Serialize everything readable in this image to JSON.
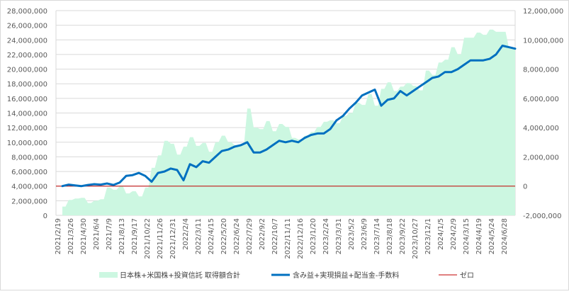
{
  "chart_data": {
    "type": "area",
    "title": "",
    "xlabel": "",
    "ylabel": "",
    "ylim_left": [
      0,
      28000000
    ],
    "ylim_right": [
      -2000000,
      12000000
    ],
    "left_ticks": [
      0,
      2000000,
      4000000,
      6000000,
      8000000,
      10000000,
      12000000,
      14000000,
      16000000,
      18000000,
      20000000,
      22000000,
      24000000,
      26000000,
      28000000
    ],
    "left_tick_labels": [
      "0",
      "2,000,000",
      "4,000,000",
      "6,000,000",
      "8,000,000",
      "10,000,000",
      "12,000,000",
      "14,000,000",
      "16,000,000",
      "18,000,000",
      "20,000,000",
      "22,000,000",
      "24,000,000",
      "26,000,000",
      "28,000,000"
    ],
    "right_ticks": [
      -2000000,
      0,
      2000000,
      4000000,
      6000000,
      8000000,
      10000000,
      12000000
    ],
    "right_tick_labels": [
      "-2,000,000",
      "0",
      "2,000,000",
      "4,000,000",
      "6,000,000",
      "8,000,000",
      "10,000,000",
      "12,000,000"
    ],
    "x_tick_labels": [
      "2021/2/19",
      "2021/3/26",
      "2021/4/30",
      "2021/6/4",
      "2021/7/9",
      "2021/8/13",
      "2021/9/17",
      "2021/10/22",
      "2021/11/26",
      "2021/12/31",
      "2022/2/4",
      "2022/3/11",
      "2022/4/15",
      "2022/5/20",
      "2022/6/24",
      "2022/7/29",
      "2022/9/2",
      "2022/10/7",
      "2022/11/11",
      "2022/12/16",
      "2023/1/20",
      "2023/2/24",
      "2023/3/31",
      "2023/5/2",
      "2023/6/9",
      "2023/7/14",
      "2023/8/18",
      "2023/9/22",
      "2023/10/27",
      "2023/12/1",
      "2024/1/5",
      "2024/2/9",
      "2024/3/15",
      "2024/4/19",
      "2024/5/24",
      "2024/6/28"
    ],
    "grid": true,
    "legend_position": "bottom",
    "series": [
      {
        "name": "日本株+米国株+投資信託 取得額合計",
        "kind": "area",
        "axis": "left",
        "color": "#ccf7e1",
        "x_index": [
          0,
          0.5,
          1,
          1.5,
          2,
          2.5,
          3,
          3.5,
          4,
          4.5,
          5,
          5.5,
          6,
          6.5,
          7,
          7.5,
          8,
          8.5,
          9,
          9.5,
          10,
          10.5,
          11,
          11.5,
          12,
          12.5,
          13,
          13.5,
          14,
          14.5,
          15,
          15.5,
          16,
          16.5,
          17,
          17.5,
          18,
          18.5,
          19,
          19.5,
          20,
          20.5,
          21,
          21.5,
          22,
          22.5,
          23,
          23.5,
          24,
          24.5,
          25,
          25.5,
          26,
          26.5,
          27,
          27.5,
          28,
          28.5,
          29,
          29.5,
          30,
          30.5,
          31,
          31.5,
          32,
          32.5,
          33,
          33.5,
          34,
          34.5,
          35,
          35.5
        ],
        "values": [
          1200000,
          2100000,
          2300000,
          2400000,
          1700000,
          2000000,
          2200000,
          3800000,
          3500000,
          4000000,
          3000000,
          3300000,
          2600000,
          3800000,
          6500000,
          8200000,
          10200000,
          9800000,
          8300000,
          9400000,
          10700000,
          9500000,
          9900000,
          8700000,
          10000000,
          10900000,
          10000000,
          9600000,
          9800000,
          14600000,
          12000000,
          11800000,
          12900000,
          11500000,
          12500000,
          12100000,
          10600000,
          10400000,
          10900000,
          11400000,
          12100000,
          12800000,
          13000000,
          12600000,
          13600000,
          14000000,
          15400000,
          15100000,
          16600000,
          15000000,
          17300000,
          18200000,
          17000000,
          17600000,
          18100000,
          17700000,
          17100000,
          19800000,
          19200000,
          20900000,
          21300000,
          23000000,
          22000000,
          24300000,
          24300000,
          25000000,
          24700000,
          25400000,
          25100000,
          25100000,
          23000000,
          22700000
        ]
      },
      {
        "name": "含み益+実現損益+配当金-手数料",
        "kind": "line",
        "axis": "right",
        "color": "#0070c0",
        "x_index": [
          0,
          0.5,
          1,
          1.5,
          2,
          2.5,
          3,
          3.5,
          4,
          4.5,
          5,
          5.5,
          6,
          6.5,
          7,
          7.5,
          8,
          8.5,
          9,
          9.5,
          10,
          10.5,
          11,
          11.5,
          12,
          12.5,
          13,
          13.5,
          14,
          14.5,
          15,
          15.5,
          16,
          16.5,
          17,
          17.5,
          18,
          18.5,
          19,
          19.5,
          20,
          20.5,
          21,
          21.5,
          22,
          22.5,
          23,
          23.5,
          24,
          24.5,
          25,
          25.5,
          26,
          26.5,
          27,
          27.5,
          28,
          28.5,
          29,
          29.5,
          30,
          30.5,
          31,
          31.5,
          32,
          32.5,
          33,
          33.5,
          34,
          34.5,
          35,
          35.5
        ],
        "values": [
          0,
          100000,
          50000,
          0,
          80000,
          130000,
          100000,
          180000,
          80000,
          250000,
          700000,
          750000,
          900000,
          700000,
          300000,
          900000,
          1000000,
          1200000,
          1100000,
          400000,
          1500000,
          1300000,
          1700000,
          1600000,
          2000000,
          2400000,
          2500000,
          2700000,
          2800000,
          3000000,
          2300000,
          2300000,
          2500000,
          2800000,
          3100000,
          3000000,
          3100000,
          3000000,
          3300000,
          3500000,
          3600000,
          3600000,
          3900000,
          4500000,
          4800000,
          5300000,
          5700000,
          6200000,
          6400000,
          6600000,
          5500000,
          5900000,
          6000000,
          6500000,
          6200000,
          6500000,
          6800000,
          7100000,
          7400000,
          7500000,
          7800000,
          7800000,
          8000000,
          8300000,
          8600000,
          8600000,
          8600000,
          8700000,
          9000000,
          9600000,
          9500000,
          9400000
        ]
      },
      {
        "name": "ゼロ",
        "kind": "line",
        "axis": "right",
        "color": "#c00000",
        "values": [
          0,
          0
        ]
      }
    ]
  }
}
